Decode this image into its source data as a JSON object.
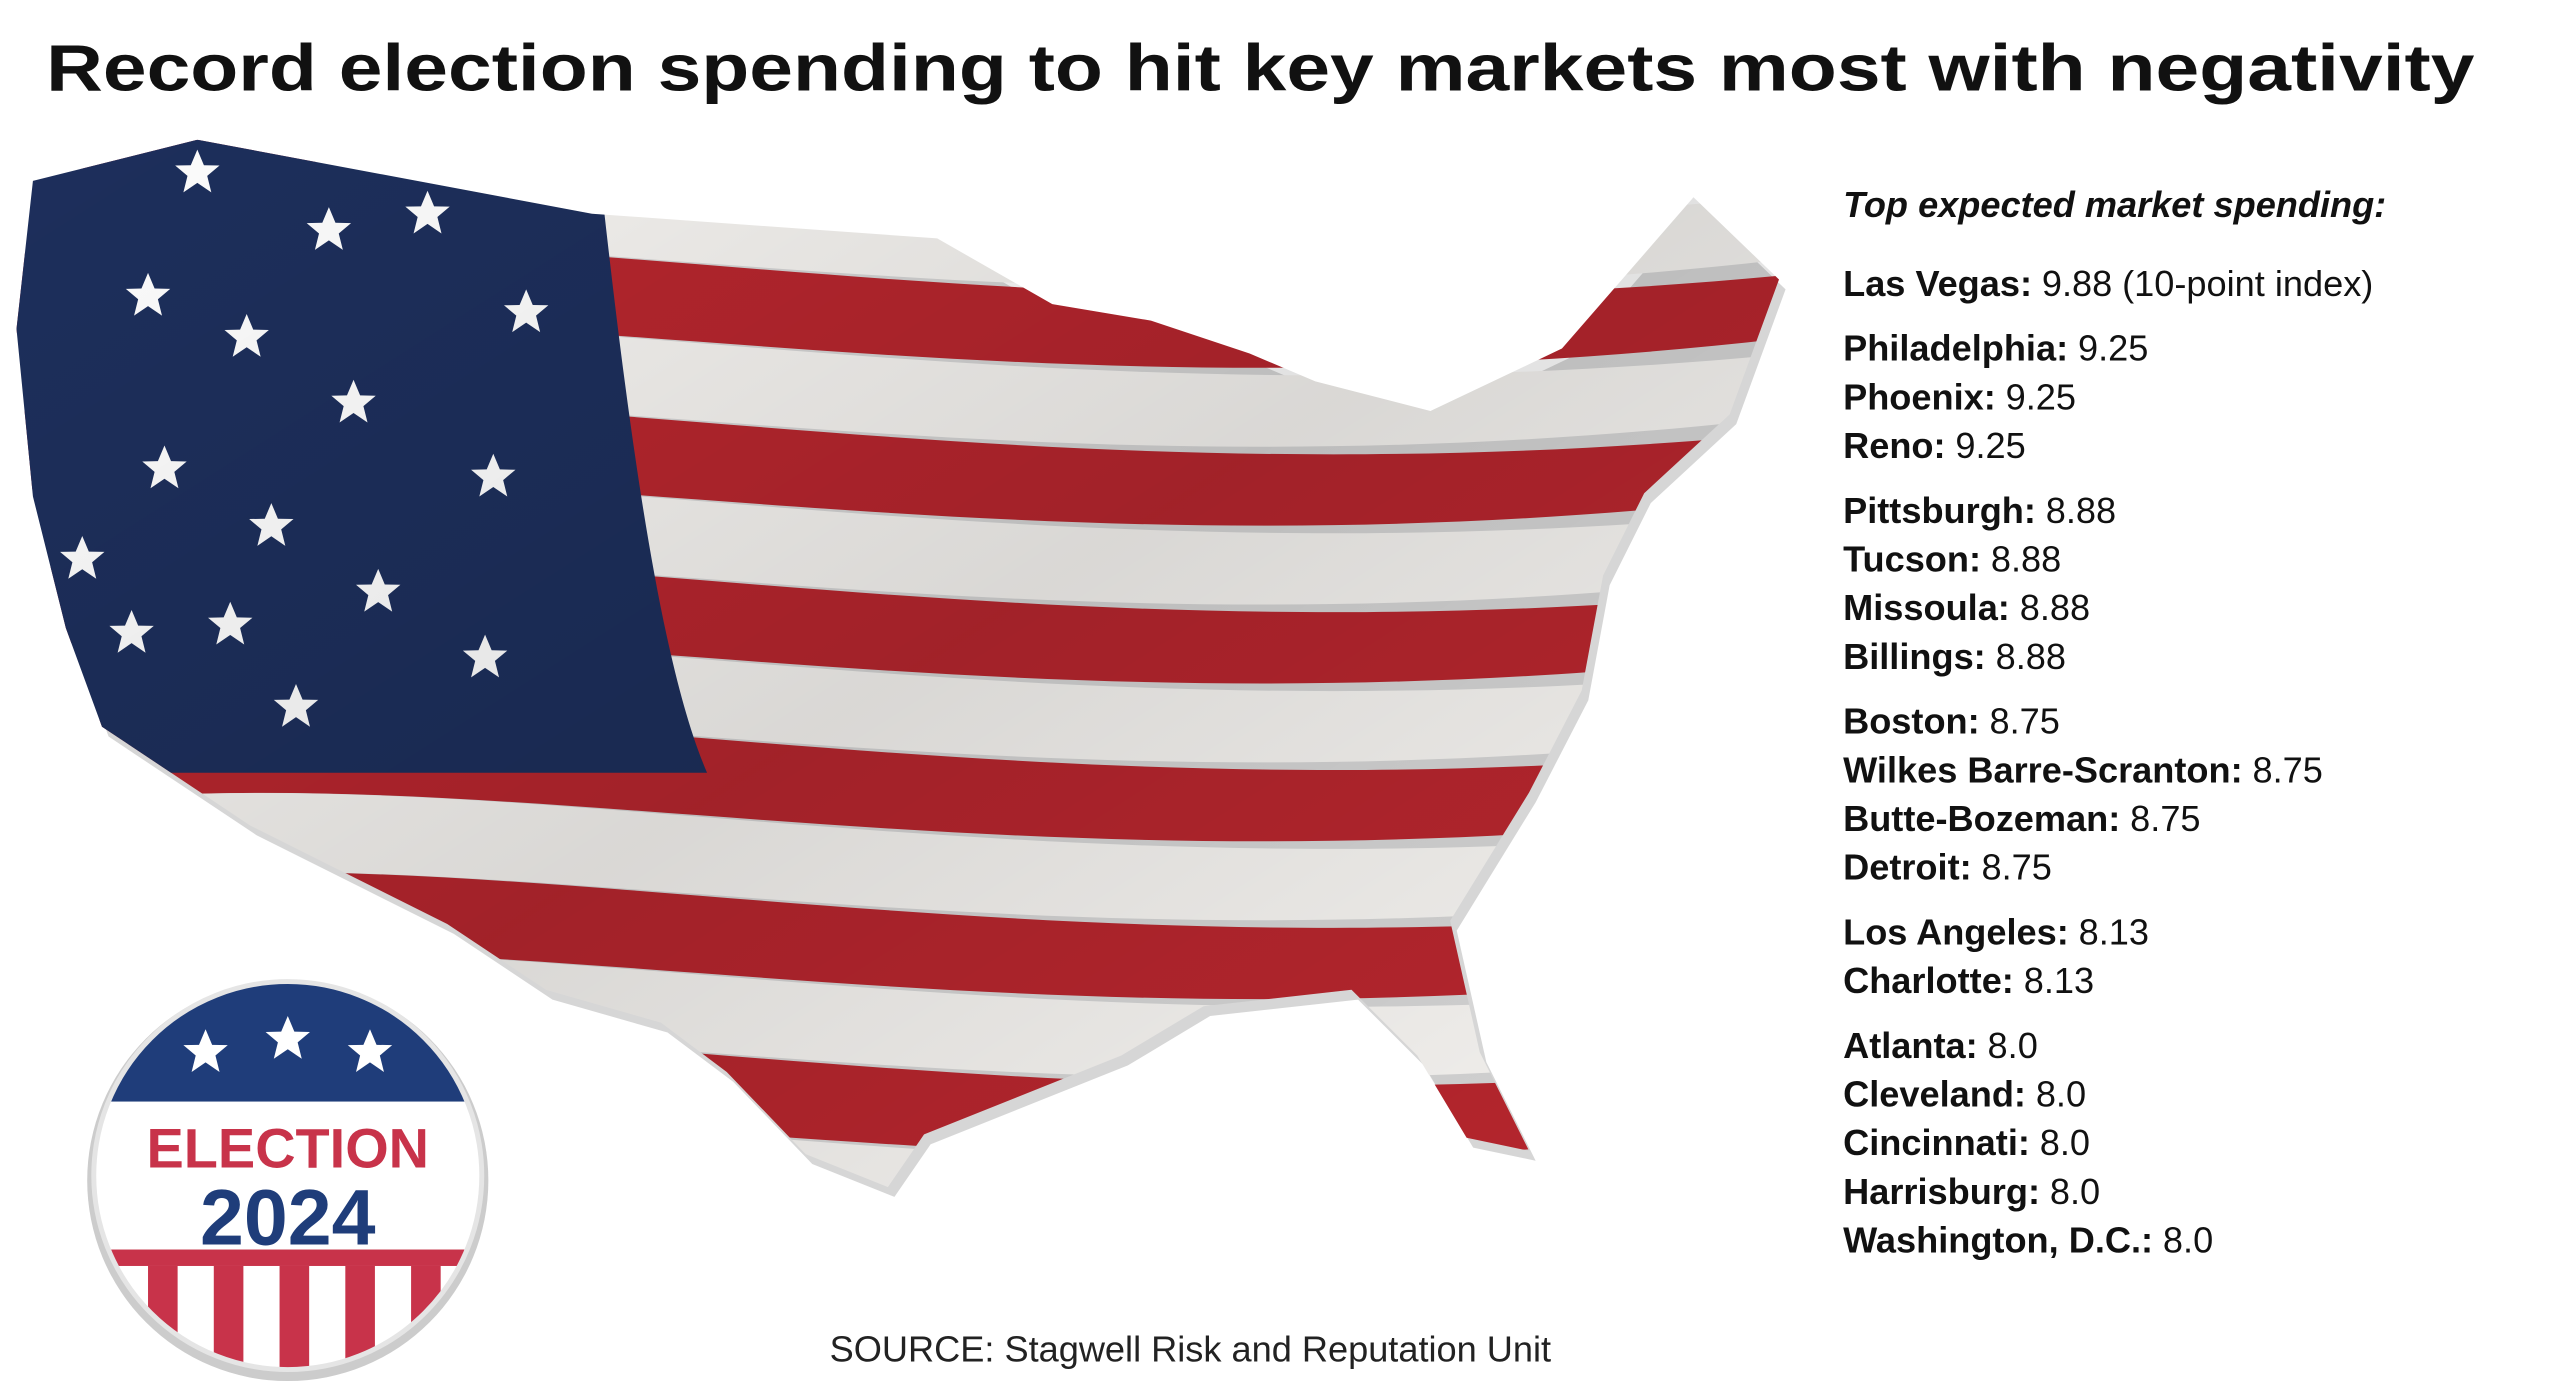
{
  "title": "Record election spending to hit key markets most with negativity",
  "list": {
    "heading": "Top expected market spending:",
    "groups": [
      [
        {
          "name": "Las Vegas:",
          "value": "9.88",
          "note": "(10-point index)"
        }
      ],
      [
        {
          "name": "Philadelphia:",
          "value": "9.25"
        },
        {
          "name": "Phoenix:",
          "value": "9.25"
        },
        {
          "name": "Reno:",
          "value": "9.25"
        }
      ],
      [
        {
          "name": "Pittsburgh:",
          "value": "8.88"
        },
        {
          "name": "Tucson:",
          "value": "8.88"
        },
        {
          "name": "Missoula:",
          "value": "8.88"
        },
        {
          "name": "Billings:",
          "value": "8.88"
        }
      ],
      [
        {
          "name": "Boston:",
          "value": "8.75"
        },
        {
          "name": "Wilkes Barre-Scranton:",
          "value": "8.75"
        },
        {
          "name": "Butte-Bozeman:",
          "value": "8.75"
        },
        {
          "name": "Detroit:",
          "value": "8.75"
        }
      ],
      [
        {
          "name": "Los Angeles:",
          "value": "8.13"
        },
        {
          "name": "Charlotte:",
          "value": "8.13"
        }
      ],
      [
        {
          "name": "Atlanta:",
          "value": "8.0"
        },
        {
          "name": "Cleveland:",
          "value": "8.0"
        },
        {
          "name": "Cincinnati:",
          "value": "8.0"
        },
        {
          "name": "Harrisburg:",
          "value": "8.0"
        },
        {
          "name": "Washington, D.C.:",
          "value": "8.0"
        }
      ]
    ]
  },
  "badge": {
    "line1": "ELECTION",
    "line2": "2024"
  },
  "source": "SOURCE: Stagwell Risk and Reputation Unit"
}
